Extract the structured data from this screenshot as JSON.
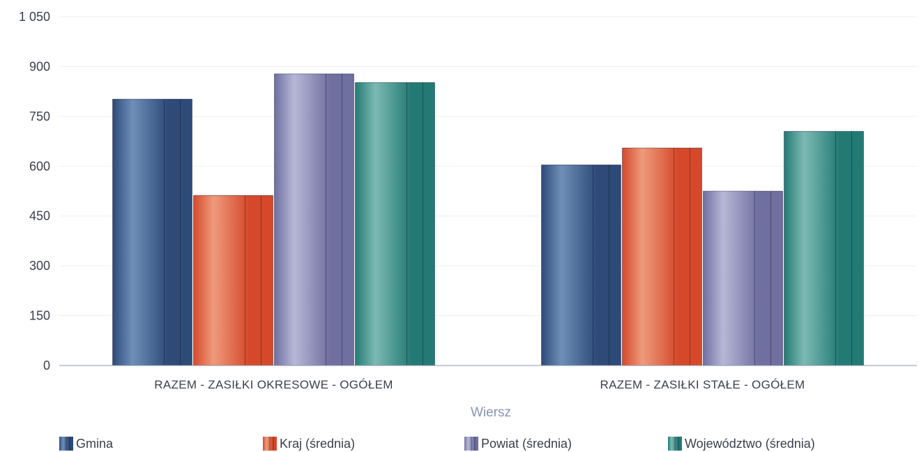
{
  "chart_data": {
    "type": "bar",
    "title": "",
    "xlabel": "Wiersz",
    "ylabel": "",
    "ylim": [
      0,
      1050
    ],
    "yticks": [
      0,
      150,
      300,
      450,
      600,
      750,
      900,
      1050
    ],
    "ytick_labels": [
      "0",
      "150",
      "300",
      "450",
      "600",
      "750",
      "900",
      "1 050"
    ],
    "grid": true,
    "legend_position": "bottom",
    "categories": [
      "RAZEM -  ZASIŁKI OKRESOWE - OGÓŁEM",
      "RAZEM -  ZASIŁKI STAŁE - OGÓŁEM"
    ],
    "series": [
      {
        "name": "Gmina",
        "values": [
          802,
          604
        ],
        "color": "#2d4a78",
        "light": "#6e8fb8"
      },
      {
        "name": "Kraj (średnia)",
        "values": [
          512,
          655
        ],
        "color": "#d5492a",
        "light": "#ef9a7c"
      },
      {
        "name": "Powiat (średnia)",
        "values": [
          878,
          525
        ],
        "color": "#6f6fa0",
        "light": "#b6b8d6"
      },
      {
        "name": "Województwo (średnia)",
        "values": [
          852,
          705
        ],
        "color": "#237a74",
        "light": "#7cbab3"
      }
    ]
  }
}
